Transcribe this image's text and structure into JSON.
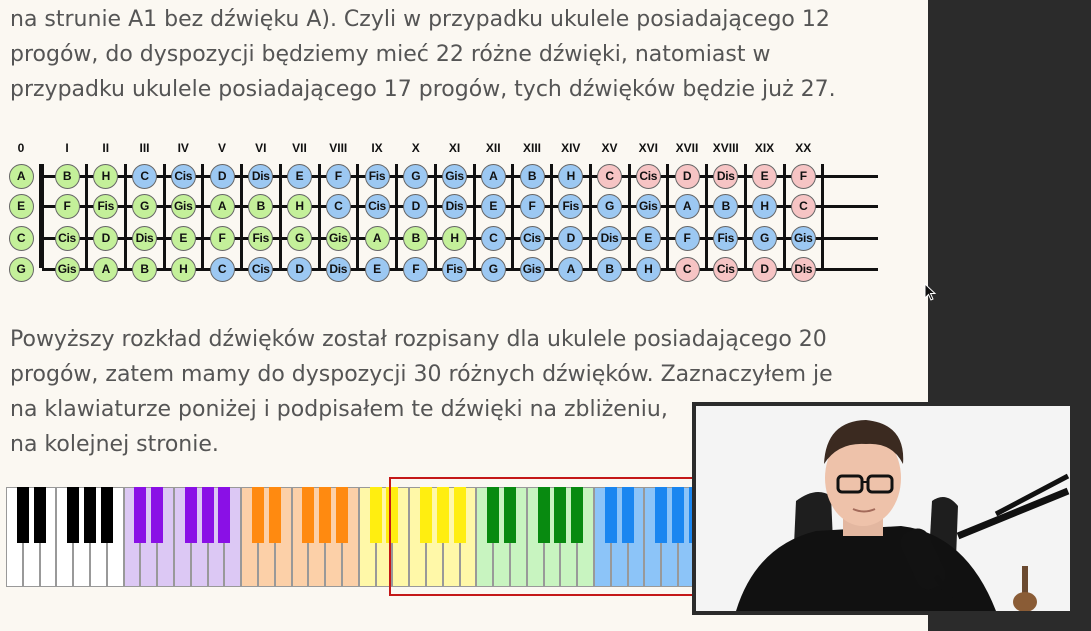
{
  "document": {
    "paragraph1": [
      "na strunie A1 bez dźwięku A). Czyli w przypadku ukulele posiadającego 12",
      "progów, do dyspozycji będziemy mieć 22 różne dźwięki, natomiast w",
      "przypadku ukulele posiadającego 17 progów, tych dźwięków będzie już 27."
    ],
    "paragraph2": [
      "Powyższy rozkład dźwięków został rozpisany dla ukulele posiadającego 20",
      "progów, zatem mamy do dyspozycji 30 różnych dźwięków. Zaznaczyłem je",
      "na klawiaturze poniżej i podpisałem te dźwięki na zbliżeniu,",
      "na kolejnej stronie."
    ]
  },
  "fretboard": {
    "fret_numbers": [
      "0",
      "I",
      "II",
      "III",
      "IV",
      "V",
      "VI",
      "VII",
      "VIII",
      "IX",
      "X",
      "XI",
      "XII",
      "XIII",
      "XIV",
      "XV",
      "XVI",
      "XVII",
      "XVIII",
      "XIX",
      "XX"
    ],
    "strings": [
      {
        "notes": [
          "A",
          "B",
          "H",
          "C",
          "Cis",
          "D",
          "Dis",
          "E",
          "F",
          "Fis",
          "G",
          "Gis",
          "A",
          "B",
          "H",
          "C",
          "Cis",
          "D",
          "Dis",
          "E",
          "F"
        ],
        "colors": [
          "green",
          "green",
          "green",
          "blue",
          "blue",
          "blue",
          "blue",
          "blue",
          "blue",
          "blue",
          "blue",
          "blue",
          "blue",
          "blue",
          "blue",
          "pink",
          "pink",
          "pink",
          "pink",
          "pink",
          "pink"
        ]
      },
      {
        "notes": [
          "E",
          "F",
          "Fis",
          "G",
          "Gis",
          "A",
          "B",
          "H",
          "C",
          "Cis",
          "D",
          "Dis",
          "E",
          "F",
          "Fis",
          "G",
          "Gis",
          "A",
          "B",
          "H",
          "C"
        ],
        "colors": [
          "green",
          "green",
          "green",
          "green",
          "green",
          "green",
          "green",
          "green",
          "blue",
          "blue",
          "blue",
          "blue",
          "blue",
          "blue",
          "blue",
          "blue",
          "blue",
          "blue",
          "blue",
          "blue",
          "pink"
        ]
      },
      {
        "notes": [
          "C",
          "Cis",
          "D",
          "Dis",
          "E",
          "F",
          "Fis",
          "G",
          "Gis",
          "A",
          "B",
          "H",
          "C",
          "Cis",
          "D",
          "Dis",
          "E",
          "F",
          "Fis",
          "G",
          "Gis"
        ],
        "colors": [
          "green",
          "green",
          "green",
          "green",
          "green",
          "green",
          "green",
          "green",
          "green",
          "green",
          "green",
          "green",
          "blue",
          "blue",
          "blue",
          "blue",
          "blue",
          "blue",
          "blue",
          "blue",
          "blue"
        ]
      },
      {
        "notes": [
          "G",
          "Gis",
          "A",
          "B",
          "H",
          "C",
          "Cis",
          "D",
          "Dis",
          "E",
          "F",
          "Fis",
          "G",
          "Gis",
          "A",
          "B",
          "H",
          "C",
          "Cis",
          "D",
          "Dis"
        ],
        "colors": [
          "green",
          "green",
          "green",
          "green",
          "green",
          "blue",
          "blue",
          "blue",
          "blue",
          "blue",
          "blue",
          "blue",
          "blue",
          "blue",
          "blue",
          "blue",
          "blue",
          "pink",
          "pink",
          "pink",
          "pink"
        ]
      }
    ]
  },
  "keyboard": {
    "octave_colors": [
      {
        "white": "#ffffff",
        "black": "#000000"
      },
      {
        "white": "#dcc8f4",
        "black": "#8a10e6"
      },
      {
        "white": "#fcd0a8",
        "black": "#ff8a10"
      },
      {
        "white": "#fff8a8",
        "black": "#ffee10"
      },
      {
        "white": "#c8f4c0",
        "black": "#088a10"
      },
      {
        "white": "#8cc4f8",
        "black": "#1a86f0"
      },
      {
        "white": "#f8c4c8",
        "black": "#e81010"
      }
    ],
    "highlight_color": "#c41818"
  },
  "webcam": {
    "background": "#ffffff",
    "shirt_color": "#111111"
  }
}
